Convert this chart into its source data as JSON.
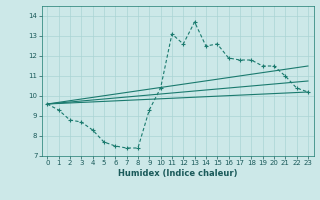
{
  "title": "",
  "xlabel": "Humidex (Indice chaleur)",
  "bg_color": "#cce8e8",
  "line_color": "#1a7a6e",
  "xlim": [
    -0.5,
    23.5
  ],
  "ylim": [
    7,
    14.5
  ],
  "xticks": [
    0,
    1,
    2,
    3,
    4,
    5,
    6,
    7,
    8,
    9,
    10,
    11,
    12,
    13,
    14,
    15,
    16,
    17,
    18,
    19,
    20,
    21,
    22,
    23
  ],
  "yticks": [
    7,
    8,
    9,
    10,
    11,
    12,
    13,
    14
  ],
  "main_x": [
    0,
    1,
    2,
    3,
    4,
    5,
    6,
    7,
    8,
    9,
    10,
    11,
    12,
    13,
    14,
    15,
    16,
    17,
    18,
    19,
    20,
    21,
    22,
    23
  ],
  "main_y": [
    9.6,
    9.3,
    8.8,
    8.7,
    8.3,
    7.7,
    7.5,
    7.4,
    7.4,
    9.3,
    10.4,
    13.1,
    12.6,
    13.7,
    12.5,
    12.6,
    11.9,
    11.8,
    11.8,
    11.5,
    11.5,
    11.0,
    10.4,
    10.2
  ],
  "line1_x": [
    0,
    23
  ],
  "line1_y": [
    9.6,
    10.2
  ],
  "line2_x": [
    0,
    23
  ],
  "line2_y": [
    9.6,
    11.5
  ],
  "line3_x": [
    0,
    23
  ],
  "line3_y": [
    9.6,
    10.75
  ]
}
